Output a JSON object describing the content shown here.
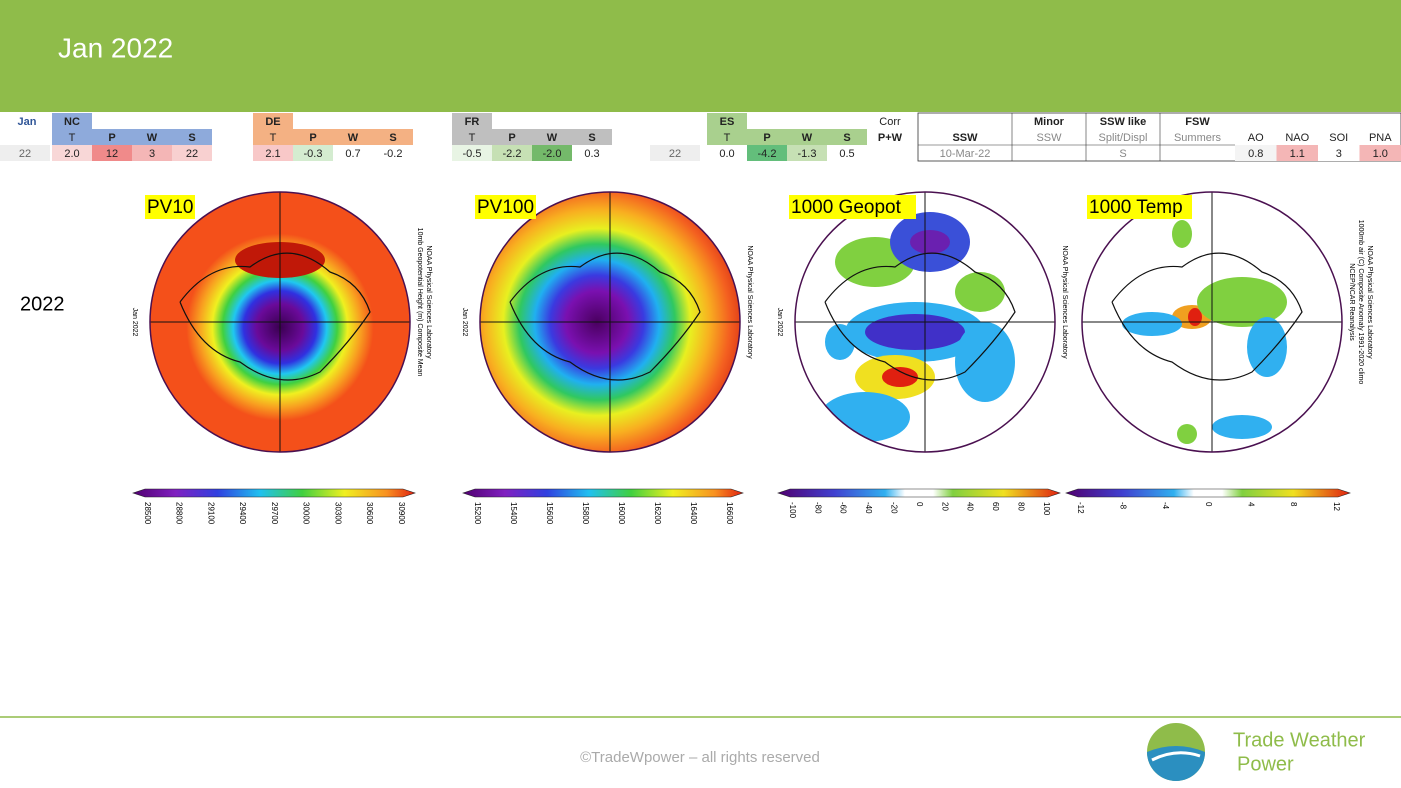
{
  "header": {
    "title": "Jan 2022"
  },
  "table": {
    "jan": {
      "label": "Jan",
      "value": "22"
    },
    "groups": [
      {
        "label": "NC",
        "headers": [
          "T",
          "P",
          "W",
          "S"
        ],
        "values": [
          "2.0",
          "12",
          "3",
          "22"
        ]
      },
      {
        "label": "DE",
        "headers": [
          "T",
          "P",
          "W",
          "S"
        ],
        "values": [
          "2.1",
          "-0.3",
          "0.7",
          "-0.2"
        ]
      },
      {
        "label": "FR",
        "headers": [
          "T",
          "P",
          "W",
          "S"
        ],
        "values": [
          "-0.5",
          "-2.2",
          "-2.0",
          "0.3"
        ]
      },
      {
        "label": "ES",
        "year": "22",
        "headers": [
          "T",
          "P",
          "W",
          "S"
        ],
        "values": [
          "0.0",
          "-4.2",
          "-1.3",
          "0.5"
        ]
      }
    ],
    "corr": [
      "Corr",
      "P+W"
    ],
    "events": [
      {
        "title": "SSW",
        "value": "10-Mar-22"
      },
      {
        "title": "Minor",
        "subtitle": "SSW"
      },
      {
        "title": "SSW like",
        "subtitle": "Split/Displ",
        "value": "S"
      },
      {
        "title": "FSW",
        "subtitle": "Summers"
      }
    ],
    "indices": {
      "headers": [
        "AO",
        "NAO",
        "SOI",
        "PNA"
      ],
      "values": [
        "0.8",
        "1.1",
        "3",
        "1.0"
      ]
    }
  },
  "row_label": "2022",
  "panels": [
    {
      "label": "PV10",
      "left_text": "Jan 2022",
      "right_text": [
        "10mb Geopotential Height (m) Composite Mean",
        "NOAA Physical Sciences Laboratory"
      ],
      "colorbar_ticks": [
        "28500",
        "28800",
        "29100",
        "29400",
        "29700",
        "30000",
        "30300",
        "30600",
        "30900"
      ]
    },
    {
      "label": "PV100",
      "left_text": "Jan 2022",
      "right_text": [
        "NOAA Physical Sciences Laboratory"
      ],
      "colorbar_ticks": [
        "15200",
        "15400",
        "15600",
        "15800",
        "16000",
        "16200",
        "16400",
        "16600"
      ]
    },
    {
      "label": "1000 Geopot",
      "left_text": "Jan 2022",
      "right_text": [
        "NOAA Physical Sciences Laboratory"
      ],
      "colorbar_ticks": [
        "-100",
        "-80",
        "-60",
        "-40",
        "-20",
        "0",
        "20",
        "40",
        "60",
        "80",
        "100"
      ]
    },
    {
      "label": "1000 Temp",
      "right_text": [
        "NCEP/NCAR Reanalysis",
        "1000mb air (C) Composite Anomaly 1991-2020 climo",
        "NOAA Physical Sciences Laboratory"
      ],
      "colorbar_ticks": [
        "-12",
        "-8",
        "-4",
        "0",
        "4",
        "8",
        "12"
      ]
    }
  ],
  "footer": {
    "copyright": "©TradeWpower – all rights reserved",
    "brand": [
      "Trade Weather",
      "Power"
    ]
  }
}
